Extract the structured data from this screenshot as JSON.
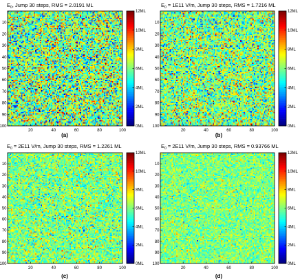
{
  "figure": {
    "colormap": "jet",
    "grid_size": 100,
    "colorbar": {
      "ticks": [
        {
          "value": 0,
          "label": "0ML"
        },
        {
          "value": 2,
          "label": "2ML"
        },
        {
          "value": 4,
          "label": "4ML"
        },
        {
          "value": 6,
          "label": "6ML"
        },
        {
          "value": 8,
          "label": "8ML"
        },
        {
          "value": 10,
          "label": "10ML"
        },
        {
          "value": 12,
          "label": "12ML"
        }
      ]
    }
  },
  "chart_data": [
    {
      "type": "heatmap",
      "panel": "(a)",
      "title_sub": "0",
      "title": ", Jump 30 steps, RMS = 2.0191 ML",
      "xlim": [
        0,
        100
      ],
      "ylim": [
        0,
        100
      ],
      "clim": [
        0,
        12
      ],
      "x_ticks": [
        20,
        40,
        60,
        80,
        100
      ],
      "y_ticks": [
        10,
        20,
        30,
        40,
        50,
        60,
        70,
        80,
        90,
        100
      ],
      "x_tick_labels": [
        "20",
        "40",
        "60",
        "80",
        "100"
      ],
      "y_tick_labels": [
        "10",
        "20",
        "30",
        "40",
        "50",
        "60",
        "70",
        "80",
        "90",
        "100"
      ],
      "rms": 2.0191,
      "mean": 6
    },
    {
      "type": "heatmap",
      "panel": "(b)",
      "title_sub": "0",
      "title": " = 1E11 V/m, Jump 30 steps, RMS = 1.7216 ML",
      "xlim": [
        0,
        100
      ],
      "ylim": [
        0,
        100
      ],
      "clim": [
        0,
        12
      ],
      "x_ticks": [
        20,
        40,
        60,
        80,
        100
      ],
      "y_ticks": [
        10,
        20,
        30,
        40,
        50,
        60,
        70,
        80,
        90,
        100
      ],
      "x_tick_labels": [
        "20",
        "40",
        "60",
        "80",
        "100"
      ],
      "y_tick_labels": [
        "10",
        "20",
        "30",
        "40",
        "50",
        "60",
        "70",
        "80",
        "90",
        "100"
      ],
      "rms": 1.7216,
      "mean": 6
    },
    {
      "type": "heatmap",
      "panel": "(c)",
      "title_sub": "0",
      "title": " = 2E11 V/m, Jump 30 steps, RMS = 1.2261 ML",
      "xlim": [
        0,
        100
      ],
      "ylim": [
        0,
        100
      ],
      "clim": [
        0,
        12
      ],
      "x_ticks": [
        20,
        40,
        60,
        80,
        100
      ],
      "y_ticks": [
        10,
        20,
        30,
        40,
        50,
        60,
        70,
        80,
        90,
        100
      ],
      "x_tick_labels": [
        "20",
        "40",
        "60",
        "80",
        "100"
      ],
      "y_tick_labels": [
        "10",
        "20",
        "30",
        "40",
        "50",
        "60",
        "70",
        "80",
        "90",
        "100"
      ],
      "rms": 1.2261,
      "mean": 6
    },
    {
      "type": "heatmap",
      "panel": "(d)",
      "title_sub": "0",
      "title": " = 2E11 V/m, Jump 30 steps, RMS = 0.93766 ML",
      "xlim": [
        0,
        100
      ],
      "ylim": [
        0,
        100
      ],
      "clim": [
        0,
        12
      ],
      "x_ticks": [
        20,
        40,
        60,
        80,
        100
      ],
      "y_ticks": [
        10,
        20,
        30,
        40,
        50,
        60,
        70,
        80,
        90,
        100
      ],
      "x_tick_labels": [
        "20",
        "40",
        "60",
        "80",
        "100"
      ],
      "y_tick_labels": [
        "10",
        "20",
        "30",
        "40",
        "50",
        "60",
        "70",
        "80",
        "90",
        "100"
      ],
      "rms": 0.93766,
      "mean": 6
    }
  ]
}
